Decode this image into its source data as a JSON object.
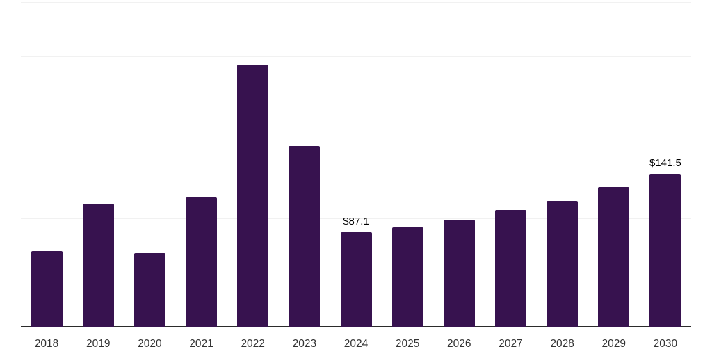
{
  "chart_data": {
    "type": "bar",
    "title": "",
    "xlabel": "",
    "ylabel": "",
    "categories": [
      "2018",
      "2019",
      "2020",
      "2021",
      "2022",
      "2023",
      "2024",
      "2025",
      "2026",
      "2027",
      "2028",
      "2029",
      "2030"
    ],
    "values": [
      70.1,
      113.8,
      68.1,
      119.6,
      242.4,
      167.2,
      87.1,
      92.0,
      99.0,
      108.0,
      116.4,
      129.2,
      141.5
    ],
    "data_labels": [
      null,
      null,
      null,
      null,
      null,
      null,
      "$87.1",
      null,
      null,
      null,
      null,
      null,
      "$141.5"
    ],
    "ylim": [
      0,
      300
    ],
    "gridline_step": 50,
    "grid": true,
    "legend": "none",
    "y_axis_labels_visible": false,
    "bar_color": "#37124f",
    "gridline_color": "#f1f1f1",
    "axis_color": "#2b2b2b",
    "tick_label_color": "#333333",
    "data_label_color": "#000000",
    "background_color": "#ffffff"
  }
}
